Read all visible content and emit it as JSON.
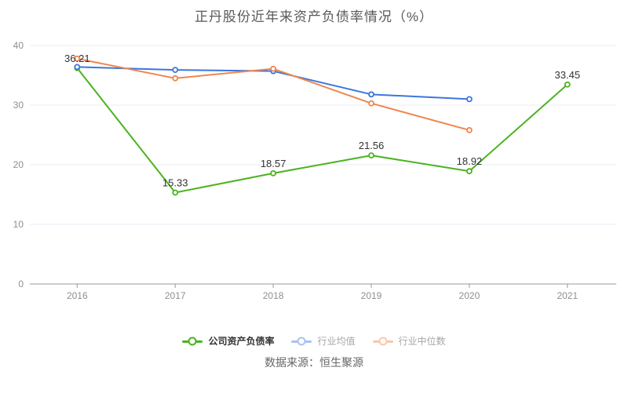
{
  "chart_data": {
    "type": "line",
    "title": "正丹股份近年来资产负债率情况（%）",
    "source_note": "数据来源：恒生聚源",
    "categories": [
      "2016",
      "2017",
      "2018",
      "2019",
      "2020",
      "2021"
    ],
    "y_ticks": [
      0,
      10,
      20,
      30,
      40
    ],
    "ylim": [
      0,
      40
    ],
    "grid": true,
    "legend_position": "bottom",
    "colors": {
      "axis_line": "#999999",
      "grid_line": "#e9eef4",
      "axis_label": "#8f8f8f",
      "value_label": "#333333",
      "legend_active_text": "#333333",
      "legend_inactive_text": "#a6a6a6"
    },
    "series": [
      {
        "name": "公司资产负债率",
        "color": "#4bb31f",
        "legend_color": "#4bb31f",
        "show_labels": true,
        "values": [
          36.21,
          15.33,
          18.57,
          21.56,
          18.92,
          33.45
        ]
      },
      {
        "name": "行业均值",
        "color": "#3d76dd",
        "legend_color": "#a9c1ee",
        "show_labels": false,
        "values": [
          36.4,
          35.9,
          35.7,
          31.8,
          31.0,
          null
        ]
      },
      {
        "name": "行业中位数",
        "color": "#f0854f",
        "legend_color": "#f8c8ab",
        "show_labels": false,
        "values": [
          37.8,
          34.5,
          36.1,
          30.3,
          25.8,
          null
        ]
      }
    ]
  }
}
